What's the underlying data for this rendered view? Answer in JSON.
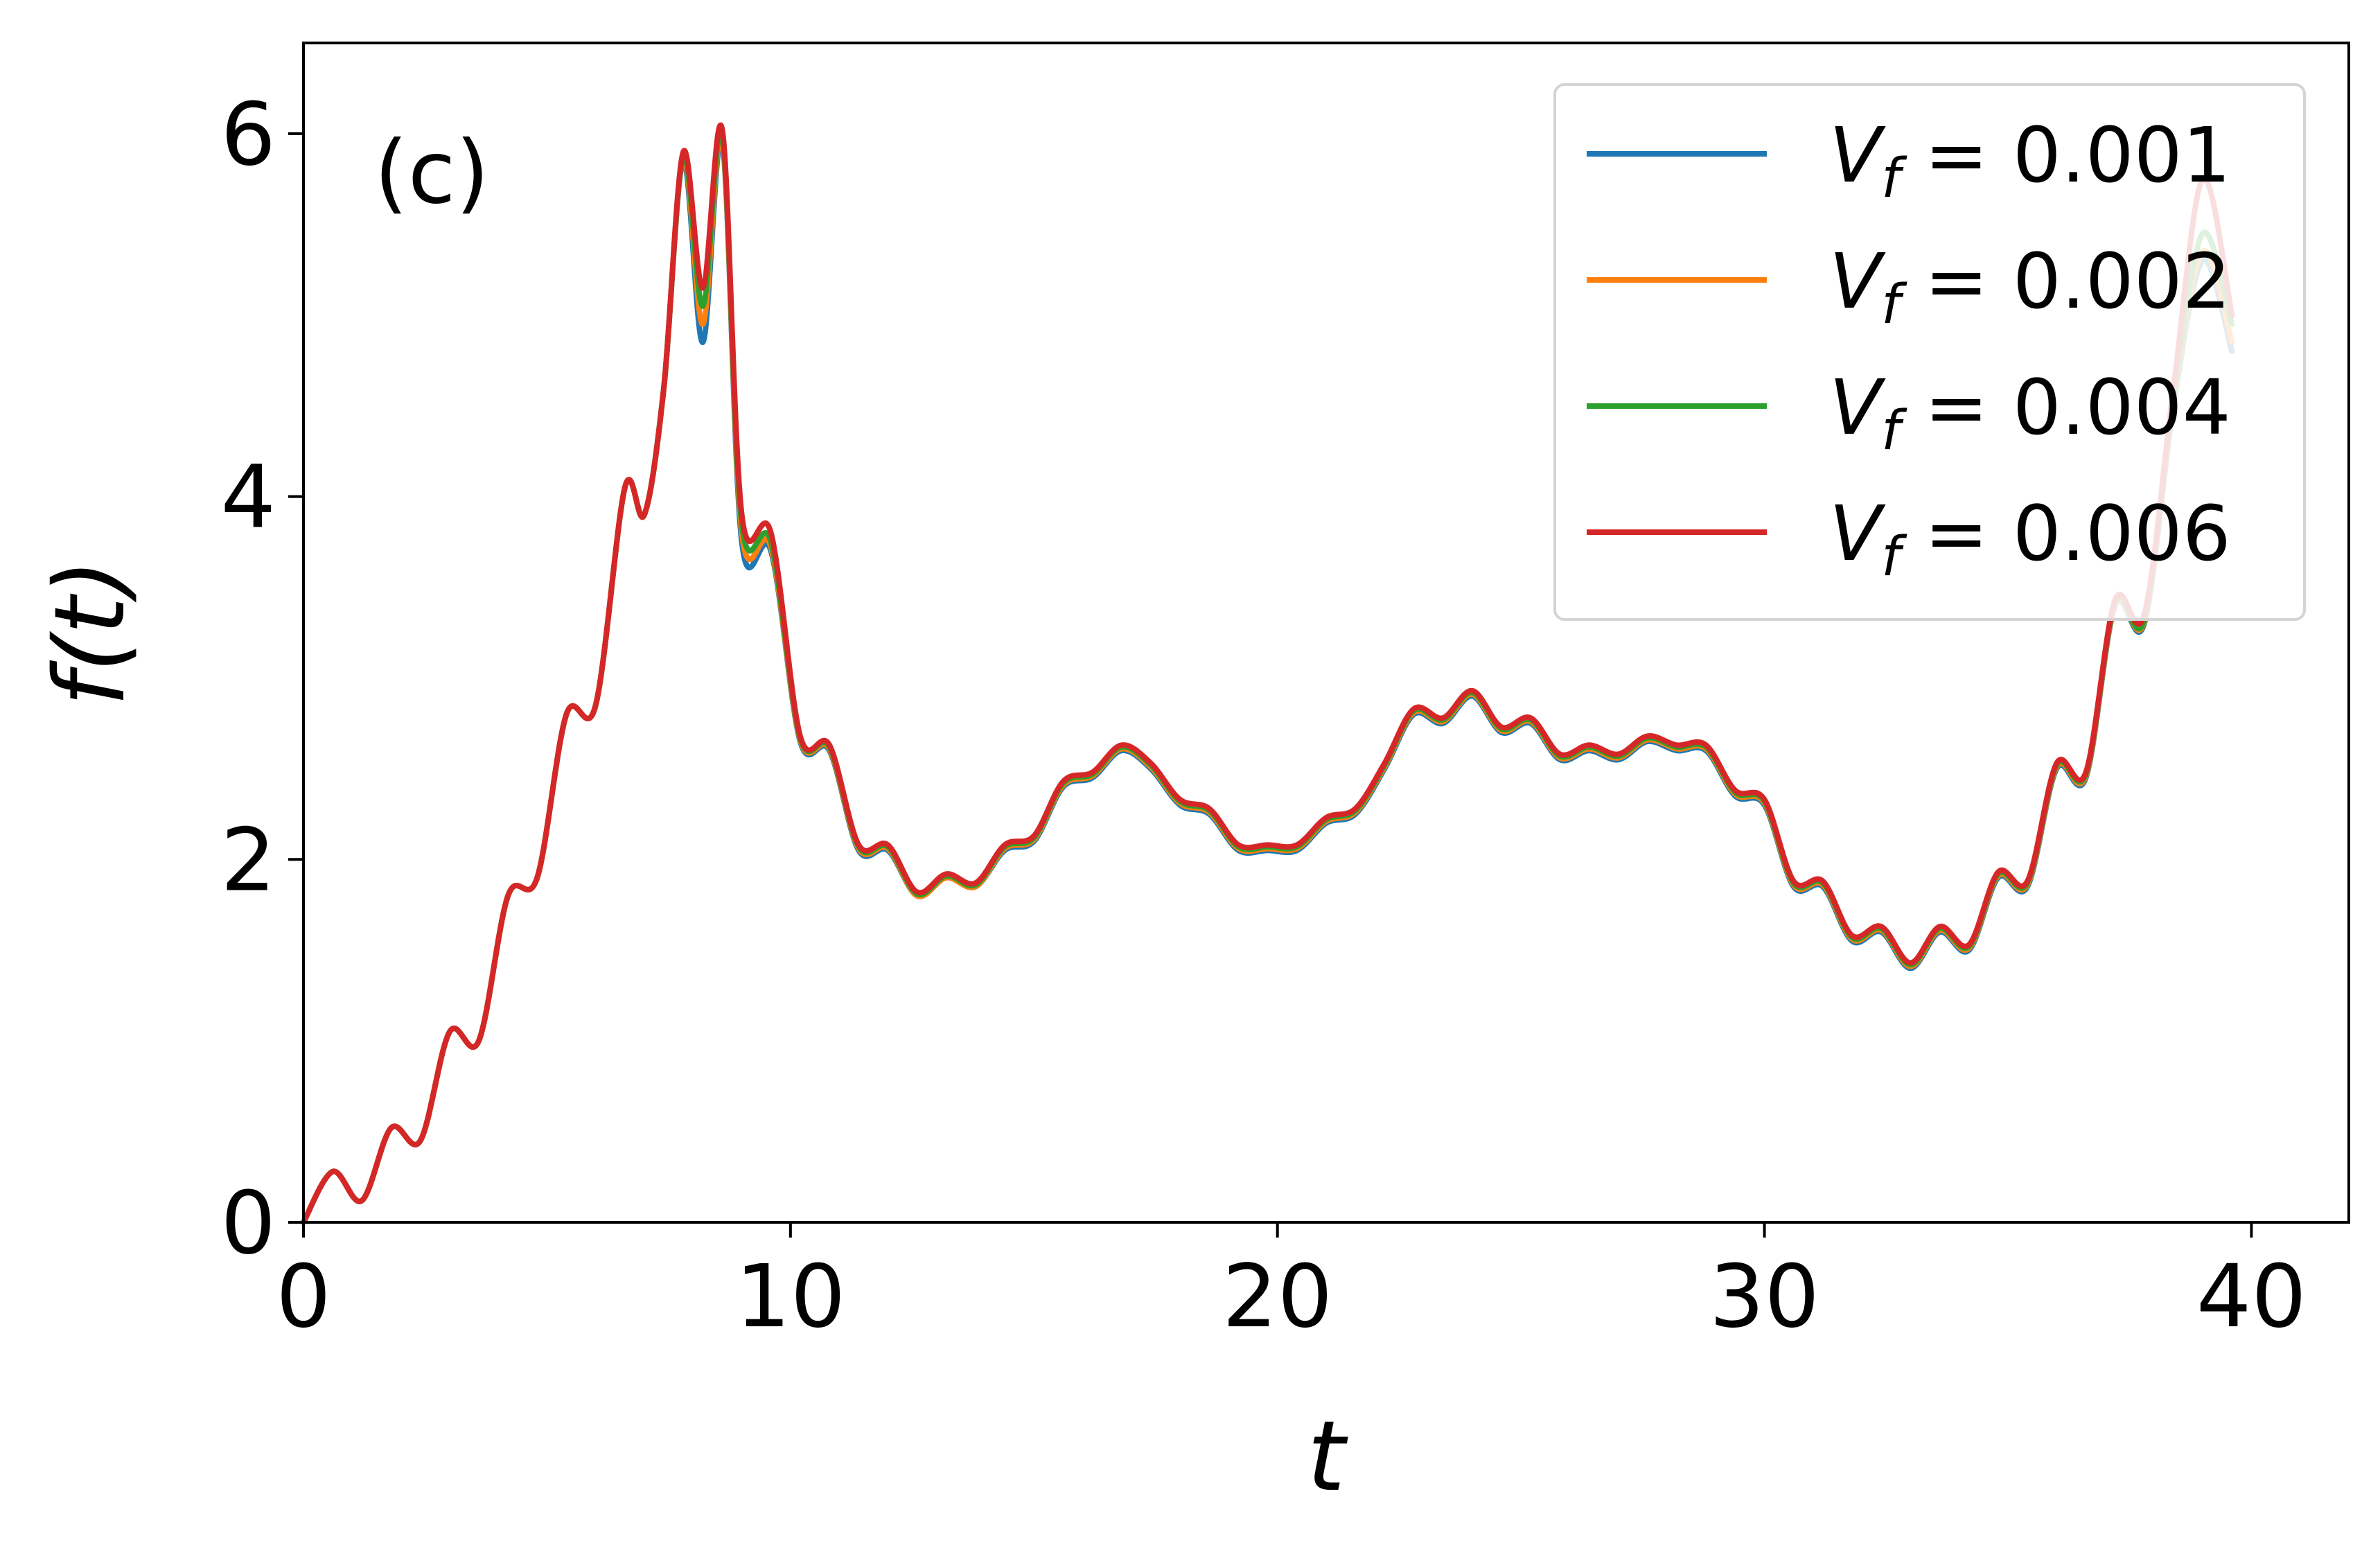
{
  "chart_data": {
    "type": "line",
    "panel_label": "(c)",
    "xlabel": "t",
    "ylabel": "f(t)",
    "xlim": [
      0,
      42
    ],
    "ylim": [
      0,
      6.5
    ],
    "x_ticks": [
      0,
      10,
      20,
      30,
      40
    ],
    "y_ticks": [
      0,
      2,
      4,
      6
    ],
    "grid": false,
    "legend_position": "top-right",
    "x": [
      0,
      0.6,
      1.2,
      1.8,
      2.4,
      3.0,
      3.6,
      4.2,
      4.8,
      5.4,
      6.0,
      6.6,
      7.0,
      7.4,
      7.8,
      8.2,
      8.6,
      9.0,
      9.6,
      10.2,
      10.8,
      11.4,
      12.0,
      12.6,
      13.2,
      13.8,
      14.4,
      15.0,
      15.6,
      16.2,
      16.8,
      17.4,
      18.0,
      18.6,
      19.2,
      19.8,
      20.4,
      21.0,
      21.6,
      22.2,
      22.8,
      23.4,
      24.0,
      24.6,
      25.2,
      25.8,
      26.4,
      27.0,
      27.6,
      28.2,
      28.8,
      29.4,
      30.0,
      30.6,
      31.2,
      31.8,
      32.4,
      33.0,
      33.6,
      34.2,
      34.8,
      35.4,
      36.0,
      36.6,
      37.2,
      37.8,
      38.4,
      39.0,
      39.6
    ],
    "series": [
      {
        "name": "V_f = 0.001",
        "label_prefix": "V",
        "label_sub": "f",
        "label_value": " = 0.001",
        "color": "#1f77b4",
        "values": [
          0.0,
          0.28,
          0.12,
          0.52,
          0.45,
          1.05,
          1.0,
          1.8,
          1.9,
          2.8,
          2.85,
          4.05,
          3.9,
          4.6,
          5.85,
          4.85,
          5.95,
          3.75,
          3.7,
          2.65,
          2.6,
          2.05,
          2.05,
          1.8,
          1.9,
          1.85,
          2.05,
          2.1,
          2.4,
          2.45,
          2.6,
          2.5,
          2.3,
          2.25,
          2.05,
          2.05,
          2.05,
          2.2,
          2.25,
          2.5,
          2.8,
          2.75,
          2.9,
          2.7,
          2.75,
          2.55,
          2.6,
          2.55,
          2.65,
          2.6,
          2.6,
          2.35,
          2.3,
          1.85,
          1.85,
          1.55,
          1.6,
          1.4,
          1.6,
          1.5,
          1.9,
          1.85,
          2.5,
          2.45,
          3.4,
          3.3,
          4.5,
          5.3,
          4.8
        ]
      },
      {
        "name": "V_f = 0.002",
        "label_prefix": "V",
        "label_sub": "f",
        "label_value": " = 0.002",
        "color": "#ff7f0e",
        "values": [
          0.0,
          0.28,
          0.12,
          0.52,
          0.45,
          1.05,
          1.0,
          1.8,
          1.9,
          2.8,
          2.85,
          4.05,
          3.9,
          4.6,
          5.87,
          4.95,
          5.97,
          3.8,
          3.72,
          2.66,
          2.61,
          2.06,
          2.06,
          1.8,
          1.9,
          1.85,
          2.06,
          2.11,
          2.41,
          2.46,
          2.61,
          2.51,
          2.31,
          2.26,
          2.06,
          2.06,
          2.06,
          2.21,
          2.26,
          2.51,
          2.81,
          2.76,
          2.91,
          2.71,
          2.76,
          2.56,
          2.61,
          2.56,
          2.66,
          2.61,
          2.61,
          2.36,
          2.31,
          1.86,
          1.86,
          1.56,
          1.61,
          1.41,
          1.61,
          1.51,
          1.91,
          1.86,
          2.51,
          2.46,
          3.41,
          3.31,
          4.52,
          5.35,
          4.85
        ]
      },
      {
        "name": "V_f = 0.004",
        "label_prefix": "V",
        "label_sub": "f",
        "label_value": " = 0.004",
        "color": "#2ca02c",
        "values": [
          0.0,
          0.28,
          0.12,
          0.52,
          0.45,
          1.05,
          1.0,
          1.8,
          1.9,
          2.8,
          2.85,
          4.05,
          3.9,
          4.6,
          5.88,
          5.05,
          5.99,
          3.85,
          3.75,
          2.67,
          2.62,
          2.07,
          2.07,
          1.81,
          1.91,
          1.86,
          2.07,
          2.12,
          2.42,
          2.47,
          2.62,
          2.52,
          2.32,
          2.27,
          2.07,
          2.07,
          2.07,
          2.22,
          2.27,
          2.52,
          2.82,
          2.77,
          2.92,
          2.72,
          2.77,
          2.57,
          2.62,
          2.57,
          2.67,
          2.62,
          2.62,
          2.37,
          2.32,
          1.87,
          1.87,
          1.57,
          1.62,
          1.42,
          1.62,
          1.52,
          1.92,
          1.87,
          2.52,
          2.47,
          3.42,
          3.32,
          4.55,
          5.45,
          4.95
        ]
      },
      {
        "name": "V_f = 0.006",
        "label_prefix": "V",
        "label_sub": "f",
        "label_value": " = 0.006",
        "color": "#d62728",
        "values": [
          0.0,
          0.28,
          0.12,
          0.52,
          0.45,
          1.05,
          1.0,
          1.8,
          1.9,
          2.8,
          2.85,
          4.05,
          3.9,
          4.6,
          5.9,
          5.15,
          6.02,
          3.9,
          3.8,
          2.68,
          2.63,
          2.08,
          2.08,
          1.82,
          1.92,
          1.87,
          2.08,
          2.13,
          2.43,
          2.48,
          2.63,
          2.53,
          2.33,
          2.28,
          2.08,
          2.08,
          2.08,
          2.23,
          2.28,
          2.53,
          2.83,
          2.78,
          2.93,
          2.73,
          2.78,
          2.58,
          2.63,
          2.58,
          2.68,
          2.63,
          2.63,
          2.38,
          2.33,
          1.88,
          1.88,
          1.58,
          1.63,
          1.43,
          1.63,
          1.53,
          1.93,
          1.88,
          2.53,
          2.48,
          3.43,
          3.35,
          4.6,
          5.75,
          5.0
        ]
      }
    ]
  }
}
